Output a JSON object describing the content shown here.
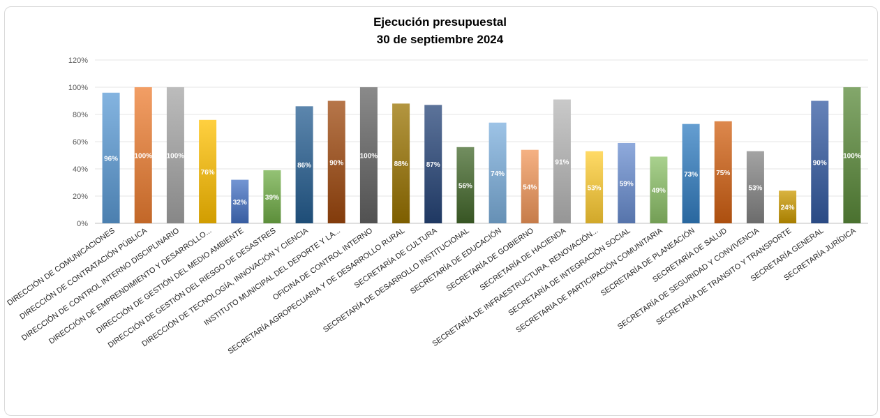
{
  "chart_data": {
    "type": "bar",
    "title": "Ejecución presupuestal",
    "subtitle": "30 de septiembre 2024",
    "xlabel": "",
    "ylabel": "",
    "ylim": [
      0,
      120
    ],
    "yticks": [
      "0%",
      "20%",
      "40%",
      "60%",
      "80%",
      "100%",
      "120%"
    ],
    "grid": true,
    "categories": [
      "DIRECCIÓN DE COMUNICACIONES",
      "DIRECCIÓN DE CONTRATACIÓN PÚBLICA",
      "DIRECCIÓN DE CONTROL INTERNO DISCIPLINARIO",
      "DIRECCIÓN DE EMPRENDIMIENTO Y DESARROLLO...",
      "DIRECCIÓN DE GESTIÓN DEL MEDIO AMBIENTE",
      "DIRECCIÓN DE GESTIÓN DEL RIESGO DE DESASTRES",
      "DIRECCIÓN DE TECNOLOGÍA, INNOVACIÓN Y CIENCIA",
      "INSTITUTO MUNICIPAL DEL DEPORTE Y LA...",
      "OFICINA DE CONTROL INTERNO",
      "SECRETARÍA AGROPECUARIA Y DE  DESARROLLO RURAL",
      "SECRETARÍA DE CULTURA",
      "SECRETARÍA DE DESARROLLO INSTITUCIONAL",
      "SECRETARÍA DE EDUCACIÓN",
      "SECRETARÍA DE GOBIERNO",
      "SECRETARÍA DE HACIENDA",
      "SECRETARÍA DE INFRAESTRUCTURA, RENOVACIÓN...",
      "SECRETARÍA DE INTEGRACIÓN SOCIAL",
      "SECRETARIA DE PARTICIPACIÓN COMUNITARIA",
      "SECRETARÍA DE PLANEACIÓN",
      "SECRETARÍA DE SALUD",
      "SECRETARÍA DE SEGURIDAD Y CONVIVENCIA",
      "SECRETARÍA DE TRANSITO Y TRANSPORTE",
      "SECRETARÍA GENERAL",
      "SECRETARÍA JURÍDICA"
    ],
    "values": [
      96,
      100,
      100,
      76,
      32,
      39,
      86,
      90,
      100,
      88,
      87,
      56,
      74,
      54,
      91,
      53,
      59,
      49,
      73,
      75,
      53,
      24,
      90,
      100
    ],
    "data_labels": [
      "96%",
      "100%",
      "100%",
      "76%",
      "32%",
      "39%",
      "86%",
      "90%",
      "100%",
      "88%",
      "87%",
      "56%",
      "74%",
      "54%",
      "91%",
      "53%",
      "59%",
      "49%",
      "73%",
      "75%",
      "53%",
      "24%",
      "90%",
      "100%"
    ],
    "colors": [
      "#5b9bd5",
      "#ed7d31",
      "#a5a5a5",
      "#ffc000",
      "#4472c4",
      "#70ad47",
      "#255e91",
      "#9e480e",
      "#636363",
      "#997300",
      "#264478",
      "#43682b",
      "#7cafdd",
      "#f1975a",
      "#b7b7b7",
      "#ffcd33",
      "#698ed0",
      "#8cc168",
      "#327dc2",
      "#d26012",
      "#848484",
      "#cc9a00",
      "#335aa1",
      "#5a8a39"
    ]
  }
}
